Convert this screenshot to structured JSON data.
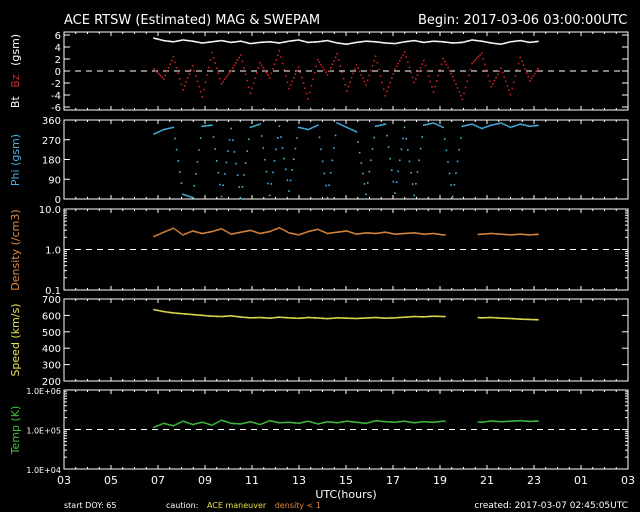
{
  "header": {
    "title": "ACE RTSW (Estimated) MAG & SWEPAM",
    "begin": "Begin: 2017-03-06 03:00:00UTC"
  },
  "footer": {
    "start_doy": "start DOY:  65",
    "caution_label": "caution:",
    "caution_maneuver": "ACE maneuver",
    "caution_density": "density < 1",
    "created": "created: 2017-03-07 02:45:05UTC"
  },
  "colors": {
    "bt": "#ffffff",
    "bz": "#cc2222",
    "phi": "#4ab0e0",
    "density": "#e08a40",
    "speed": "#e8e050",
    "temp": "#3ec03e"
  },
  "chart_data": [
    {
      "type": "scatter",
      "panel": "mag",
      "ylabel_parts": [
        "Bt",
        "Bz",
        "(gsm)"
      ],
      "ylim": [
        -6.5,
        6.5
      ],
      "yticks": [
        6,
        4,
        2,
        0,
        -2,
        -4,
        -6
      ],
      "ytick_labels": [
        "6",
        "4",
        "2",
        "0",
        "-2",
        "-4",
        "-6"
      ],
      "reference_line": 0,
      "x_range_hours": [
        6.8,
        23.2
      ],
      "series": [
        {
          "key": "bt",
          "values": [
            5.6,
            5.2,
            5.0,
            5.3,
            5.1,
            4.8,
            5.0,
            5.2,
            4.9,
            5.1,
            4.7,
            4.9,
            5.0,
            4.8,
            5.1,
            5.3,
            4.9,
            5.0,
            5.2,
            4.8,
            4.6,
            4.9,
            5.1,
            5.0,
            4.8,
            4.7,
            5.0,
            5.2,
            4.9,
            5.1,
            5.0,
            4.8,
            4.9,
            5.3,
            5.1,
            4.8,
            4.6,
            5.0,
            5.2,
            4.9,
            5.1
          ]
        },
        {
          "key": "bz",
          "values": [
            0.5,
            -1.2,
            2.5,
            -3.0,
            1.0,
            -4.2,
            3.2,
            -2.0,
            0.2,
            2.8,
            -3.6,
            1.5,
            -1.0,
            3.5,
            -2.8,
            0.8,
            -4.5,
            2.0,
            -0.5,
            3.0,
            -3.2,
            1.2,
            -2.2,
            2.6,
            -4.0,
            0.4,
            3.3,
            -1.8,
            1.9,
            -3.4,
            2.2,
            -0.8,
            -4.6,
            1.4,
            3.1,
            -2.5,
            0.6,
            -3.8,
            2.4,
            -1.5,
            0.9
          ]
        }
      ]
    },
    {
      "type": "scatter",
      "panel": "phi",
      "ylabel": "Phi (gsm)",
      "ylim": [
        0,
        360
      ],
      "yticks": [
        360,
        270,
        180,
        90,
        0
      ],
      "ytick_labels": [
        "360",
        "270",
        "180",
        "90",
        "0"
      ],
      "x_range_hours": [
        6.8,
        23.2
      ],
      "series": [
        {
          "key": "phi",
          "values": [
            300,
            320,
            330,
            25,
            10,
            335,
            340,
            15,
            325,
            5,
            330,
            345,
            20,
            335,
            40,
            330,
            320,
            340,
            10,
            350,
            330,
            310,
            25,
            335,
            345,
            30,
            330,
            20,
            340,
            350,
            330,
            15,
            335,
            345,
            325,
            340,
            350,
            330,
            345,
            335,
            340
          ]
        }
      ]
    },
    {
      "type": "scatter",
      "panel": "density",
      "ylabel": "Density (/cm3)",
      "scale": "log",
      "ylim": [
        0.1,
        10
      ],
      "yticks": [
        10,
        1,
        0.1
      ],
      "ytick_labels": [
        "10.0",
        "1.0",
        "0.1"
      ],
      "reference_line": 1,
      "x_range_hours": [
        6.8,
        23.2
      ],
      "gaps_hours": [
        [
          19.2,
          20.6
        ]
      ],
      "series": [
        {
          "key": "density",
          "values": [
            2.2,
            2.8,
            3.5,
            2.4,
            3.0,
            2.6,
            2.9,
            3.4,
            2.5,
            2.8,
            3.1,
            2.6,
            2.9,
            3.6,
            2.7,
            2.4,
            2.9,
            3.3,
            2.6,
            2.8,
            3.0,
            2.5,
            2.7,
            2.6,
            2.8,
            2.5,
            2.6,
            2.7,
            2.5,
            2.6,
            2.4,
            2.5,
            2.6,
            2.4,
            2.5,
            2.6,
            2.5,
            2.4,
            2.5,
            2.4,
            2.5
          ]
        }
      ]
    },
    {
      "type": "scatter",
      "panel": "speed",
      "ylabel": "Speed (km/s)",
      "ylim": [
        200,
        700
      ],
      "yticks": [
        700,
        600,
        500,
        400,
        300,
        200
      ],
      "ytick_labels": [
        "700",
        "600",
        "500",
        "400",
        "300",
        "200"
      ],
      "x_range_hours": [
        6.8,
        23.2
      ],
      "gaps_hours": [
        [
          19.2,
          20.6
        ]
      ],
      "series": [
        {
          "key": "speed",
          "values": [
            640,
            628,
            620,
            615,
            610,
            605,
            600,
            598,
            602,
            595,
            590,
            592,
            588,
            594,
            590,
            587,
            592,
            589,
            585,
            590,
            588,
            586,
            589,
            592,
            588,
            590,
            594,
            598,
            596,
            600,
            598,
            595,
            597,
            594,
            590,
            592,
            588,
            586,
            582,
            580,
            578
          ]
        }
      ]
    },
    {
      "type": "scatter",
      "panel": "temp",
      "ylabel": "Temp (K)",
      "scale": "log",
      "ylim": [
        10000,
        1000000
      ],
      "yticks": [
        1000000,
        100000,
        10000
      ],
      "ytick_labels": [
        "1.0E+06",
        "1.0E+05",
        "1.0E+04"
      ],
      "reference_line": 100000,
      "x_range_hours": [
        6.8,
        23.2
      ],
      "gaps_hours": [
        [
          19.2,
          20.6
        ]
      ],
      "xlabel": "UTC(hours)",
      "xtick_labels": [
        "03",
        "05",
        "07",
        "09",
        "11",
        "13",
        "15",
        "17",
        "19",
        "21",
        "23",
        "01",
        "03"
      ],
      "series": [
        {
          "key": "temp",
          "values": [
            120000,
            150000,
            130000,
            170000,
            140000,
            160000,
            135000,
            180000,
            150000,
            145000,
            165000,
            140000,
            175000,
            155000,
            160000,
            150000,
            170000,
            145000,
            165000,
            155000,
            170000,
            160000,
            150000,
            175000,
            165000,
            160000,
            170000,
            155000,
            165000,
            160000,
            170000,
            158000,
            162000,
            168000,
            160000,
            172000,
            165000,
            170000,
            175000,
            168000,
            172000
          ]
        }
      ]
    }
  ]
}
